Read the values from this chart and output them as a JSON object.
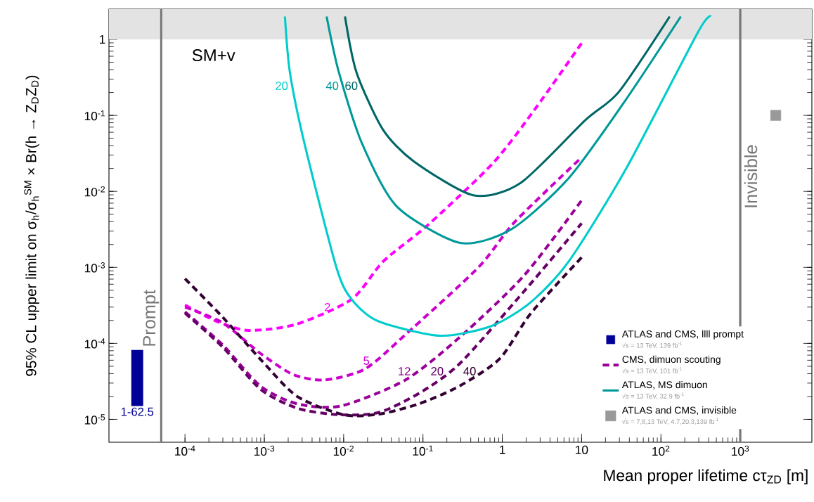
{
  "chart_data": {
    "type": "line",
    "log": "xy",
    "xlabel": "Mean proper lifetime cτ$_{ZD}$ [m]",
    "ylabel": "95% CL upper limit on σ$_{h}$/σ$_{h}$$^{SM}$ × Br(h → Z$_{D}$Z$_{D}$)",
    "xlim": [
      1.1e-05,
      8000
    ],
    "ylim": [
      5e-06,
      2.5
    ],
    "xticks": [
      {
        "value": 0.0001,
        "label": "10$^{-4}$"
      },
      {
        "value": 0.001,
        "label": "10$^{-3}$"
      },
      {
        "value": 0.01,
        "label": "10$^{-2}$"
      },
      {
        "value": 0.1,
        "label": "10$^{-1}$"
      },
      1,
      10,
      {
        "value": 100,
        "label": "10$^{2}$"
      },
      {
        "value": 1000,
        "label": "10$^{3}$"
      }
    ],
    "yticks": [
      {
        "value": 1e-05,
        "label": "10$^{-5}$"
      },
      {
        "value": 0.0001,
        "label": "10$^{-4}$"
      },
      {
        "value": 0.001,
        "label": "10$^{-3}$"
      },
      {
        "value": 0.01,
        "label": "10$^{-2}$"
      },
      {
        "value": 0.1,
        "label": "10$^{-1}$"
      },
      1
    ],
    "legend": "bottom right",
    "series": [
      {
        "name": "ATLAS and CMS, llll prompt",
        "type": "bar",
        "color": "#000099",
        "x": [
          2.5e-05
        ],
        "base": [
          1.5e-05
        ],
        "values": [
          6.7e-05
        ]
      },
      {
        "line_style": "dashed",
        "color": "#ff00ff",
        "x": [
          0.0001,
          0.00025,
          0.00063,
          0.0025,
          0.0126,
          0.0316,
          0.115,
          0.76,
          2.57,
          10
        ],
        "values": [
          0.00032,
          0.000195,
          0.000148,
          0.000178,
          0.00038,
          0.0012,
          0.0036,
          0.0234,
          0.12,
          0.89
        ]
      },
      {
        "line_style": "dashed",
        "color": "#cc00cc",
        "x": [
          0.0001,
          0.0003,
          0.00089,
          0.0023,
          0.0058,
          0.0186,
          0.06,
          0.5,
          1.45,
          10
        ],
        "values": [
          0.0003,
          0.000186,
          7.4e-05,
          3.9e-05,
          3.3e-05,
          4.6e-05,
          0.00013,
          0.001,
          0.004,
          0.028
        ]
      },
      {
        "name": "CMS, dimuon scouting",
        "line_style": "dashed",
        "color": "#990099",
        "x": [
          0.0001,
          0.0003,
          0.00089,
          0.0026,
          0.0093,
          0.06,
          0.29,
          1.9,
          10
        ],
        "values": [
          0.00026,
          9.5e-05,
          2.75e-05,
          1.6e-05,
          1.5e-05,
          3.3e-05,
          0.00012,
          0.00079,
          0.0076
        ]
      },
      {
        "line_style": "dashed",
        "color": "#660066",
        "x": [
          0.0001,
          0.0003,
          0.00089,
          0.0026,
          0.0085,
          0.0275,
          0.089,
          0.29,
          1.9,
          10
        ],
        "values": [
          0.00025,
          8.9e-05,
          2.5e-05,
          1.4e-05,
          1.15e-05,
          1.23e-05,
          2.2e-05,
          5.4e-05,
          0.00049,
          0.0038
        ]
      },
      {
        "line_style": "dashed",
        "color": "#330033",
        "x": [
          0.0001,
          0.0003,
          0.00093,
          0.0026,
          0.01,
          0.0275,
          0.089,
          0.29,
          0.93,
          2.3,
          10
        ],
        "values": [
          0.00071,
          0.00022,
          5.9e-05,
          2e-05,
          1.15e-05,
          1.17e-05,
          1.6e-05,
          2.75e-05,
          6.3e-05,
          0.00025,
          0.00135
        ]
      },
      {
        "line_style": "solid",
        "color": "#00cccc",
        "x": [
          0.00182,
          0.0021,
          0.0032,
          0.0081,
          0.0126,
          0.0275,
          0.166,
          0.74,
          2.3,
          6.9,
          36,
          295,
          427
        ],
        "values": [
          2,
          0.37,
          0.043,
          0.001,
          0.00038,
          0.000195,
          0.000126,
          0.00017,
          0.00035,
          0.0012,
          0.0195,
          1.26,
          2
        ]
      },
      {
        "name": "ATLAS, MS dimuon",
        "line_style": "solid",
        "color": "#009999",
        "x": [
          0.0061,
          0.0087,
          0.017,
          0.047,
          0.295,
          1.32,
          6.9,
          36,
          178
        ],
        "values": [
          2,
          0.37,
          0.043,
          0.0063,
          0.0021,
          0.0032,
          0.015,
          0.16,
          2
        ]
      },
      {
        "line_style": "solid",
        "color": "#006666",
        "x": [
          0.0104,
          0.0145,
          0.031,
          0.076,
          0.43,
          1.7,
          11.2,
          29.5,
          129
        ],
        "values": [
          2,
          0.37,
          0.066,
          0.025,
          0.0089,
          0.0129,
          0.087,
          0.204,
          2
        ]
      },
      {
        "name": "ATLAS and CMS, invisible",
        "type": "scatter",
        "marker": "square",
        "color": "#999999",
        "x": [
          2800
        ],
        "values": [
          0.1
        ]
      }
    ],
    "ref_lines": [
      {
        "axis": "x",
        "value": 5e-05,
        "label": "Prompt",
        "color": "#777777"
      },
      {
        "axis": "x",
        "value": 1000,
        "label": "Invisible",
        "color": "#777777"
      }
    ],
    "bands": [
      {
        "axis": "y",
        "from": 1,
        "to": 2.5,
        "color": "#e3e3e3"
      }
    ],
    "annotations": [
      "√s = 13 TeV, 139 fb$^{-1}$",
      "√s = 13 TeV, 101 fb$^{-1}$",
      "√s = 13 TeV, 32.9 fb$^{-1}$",
      "√s = 7,8,13 TeV, 4.7,20.3,139 fb$^{-1}$",
      "SM+v",
      {
        "text": "1-62.5",
        "x": 2.5e-05,
        "y": 1.5e-05
      },
      {
        "text": "2",
        "x": 0.0079,
        "y": 0.0003
      },
      {
        "text": "5",
        "x": 0.0245,
        "y": 5.9e-05
      },
      {
        "text": "12",
        "x": 0.081,
        "y": 4.3e-05
      },
      {
        "text": "20",
        "x": 0.21,
        "y": 4.3e-05
      },
      {
        "text": "40",
        "x": 0.54,
        "y": 4.3e-05
      },
      {
        "text": "20",
        "x": 0.0023,
        "y": 0.245
      },
      {
        "text": "40",
        "x": 0.01,
        "y": 0.245
      },
      {
        "text": "60",
        "x": 0.0174,
        "y": 0.245
      }
    ]
  }
}
